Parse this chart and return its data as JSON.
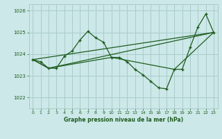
{
  "title": "Graphe pression niveau de la mer (hPa)",
  "bg_color": "#cce8e8",
  "grid_color": "#aacccc",
  "line_color": "#1e5c1e",
  "xlim": [
    -0.5,
    23.5
  ],
  "ylim": [
    1021.5,
    1026.3
  ],
  "yticks": [
    1022,
    1023,
    1024,
    1025,
    1026
  ],
  "xticks": [
    0,
    1,
    2,
    3,
    4,
    5,
    6,
    7,
    8,
    9,
    10,
    11,
    12,
    13,
    14,
    15,
    16,
    17,
    18,
    19,
    20,
    21,
    22,
    23
  ],
  "series1": {
    "x": [
      0,
      1,
      2,
      3,
      4,
      5,
      6,
      7,
      8,
      9,
      10,
      11,
      12,
      13,
      14,
      15,
      16,
      17,
      18,
      19,
      20,
      21,
      22,
      23
    ],
    "y": [
      1023.75,
      1023.65,
      1023.35,
      1023.35,
      1023.9,
      1024.15,
      1024.65,
      1025.05,
      1024.75,
      1024.55,
      1023.85,
      1023.85,
      1023.65,
      1023.3,
      1023.05,
      1022.75,
      1022.45,
      1022.4,
      1023.3,
      1023.3,
      1024.3,
      1025.25,
      1025.85,
      1025.0
    ]
  },
  "series2": {
    "x": [
      0,
      23
    ],
    "y": [
      1023.75,
      1025.0
    ]
  },
  "series3": {
    "x": [
      0,
      2,
      23
    ],
    "y": [
      1023.75,
      1023.35,
      1025.0
    ]
  },
  "series4": {
    "x": [
      0,
      2,
      10,
      18,
      23
    ],
    "y": [
      1023.75,
      1023.35,
      1023.85,
      1023.3,
      1025.0
    ]
  }
}
